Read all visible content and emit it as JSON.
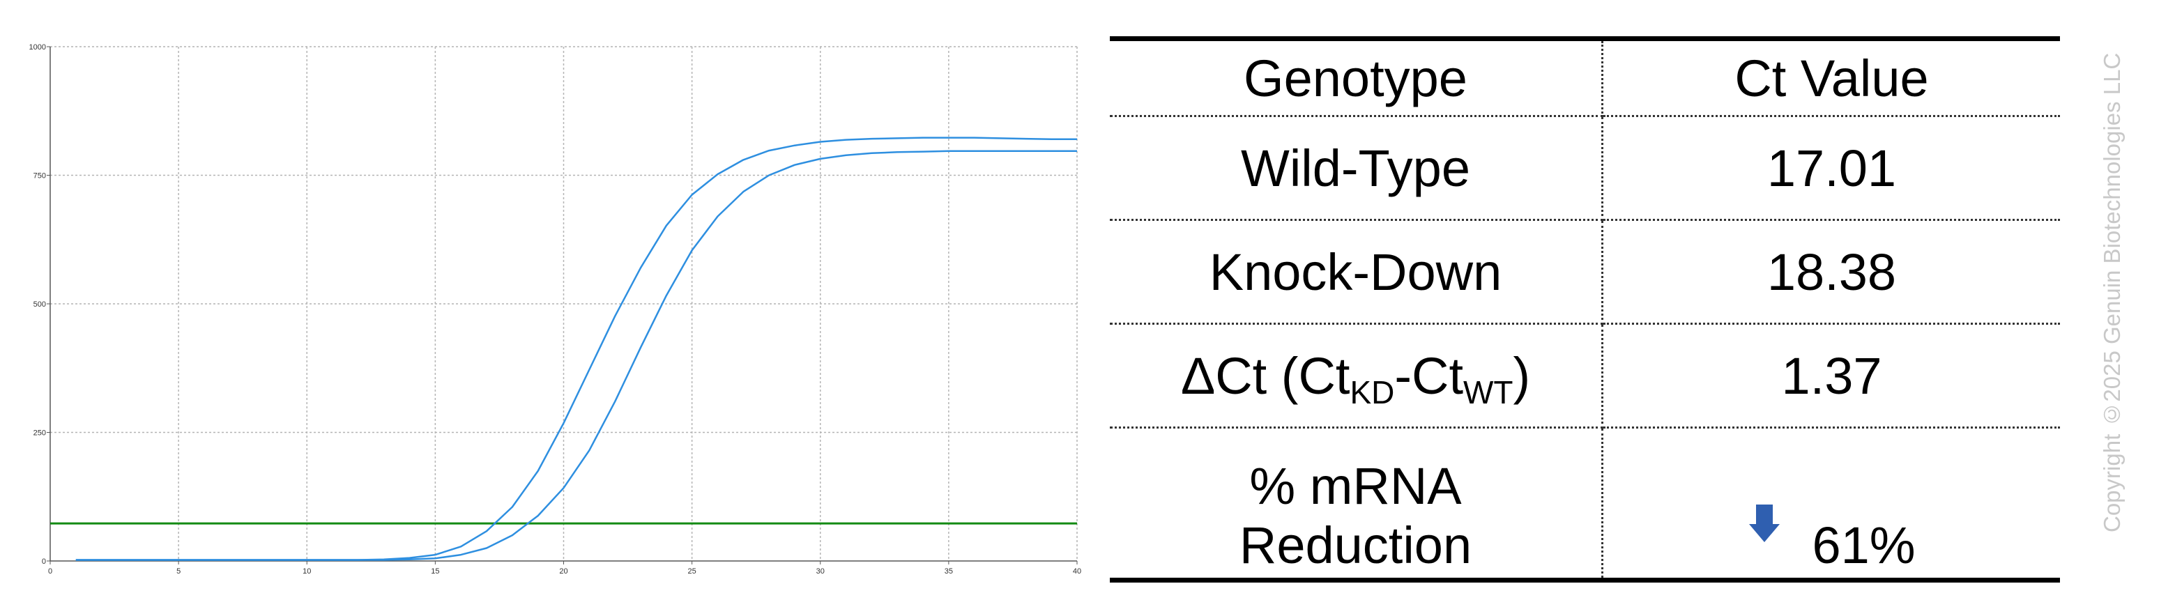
{
  "chart_data": {
    "type": "line",
    "x_ticks": [
      0,
      5,
      10,
      15,
      20,
      25,
      30,
      35,
      40
    ],
    "y_ticks": [
      0,
      250,
      500,
      750,
      1000
    ],
    "xlim": [
      0,
      40
    ],
    "ylim": [
      0,
      1000
    ],
    "grid": true,
    "threshold": 73,
    "series": [
      {
        "x": [
          1,
          5,
          10,
          12,
          13,
          14,
          15,
          16,
          17,
          18,
          19,
          20,
          21,
          22,
          23,
          24,
          25,
          26,
          27,
          28,
          29,
          30,
          31,
          32,
          33,
          34,
          35,
          36,
          37,
          38,
          39,
          40
        ],
        "values": [
          2,
          2,
          2,
          2,
          3,
          6,
          12,
          28,
          58,
          105,
          175,
          268,
          372,
          476,
          570,
          652,
          712,
          752,
          780,
          798,
          808,
          815,
          819,
          821,
          822,
          823,
          823,
          823,
          822,
          821,
          820,
          820
        ]
      },
      {
        "x": [
          1,
          5,
          10,
          12,
          13,
          14,
          15,
          16,
          17,
          18,
          19,
          20,
          21,
          22,
          23,
          24,
          25,
          26,
          27,
          28,
          29,
          30,
          31,
          32,
          33,
          34,
          35,
          36,
          37,
          38,
          39,
          40
        ],
        "values": [
          2,
          2,
          2,
          2,
          2,
          3,
          5,
          12,
          25,
          50,
          88,
          142,
          215,
          310,
          415,
          516,
          604,
          670,
          718,
          750,
          770,
          782,
          789,
          793,
          795,
          796,
          797,
          797,
          797,
          797,
          797,
          797
        ]
      }
    ]
  },
  "table": {
    "header": {
      "genotype": "Genotype",
      "ct": "Ct Value"
    },
    "rows": [
      {
        "genotype": "Wild-Type",
        "ct": "17.01"
      },
      {
        "genotype": "Knock-Down",
        "ct": "18.38"
      }
    ],
    "delta_row": {
      "prefix": "ΔCt (Ct",
      "sub_kd": "KD",
      "minus": "-Ct",
      "sub_wt": "WT",
      "suffix": ")",
      "ct": "1.37"
    },
    "reduction_row": {
      "line1": "% mRNA",
      "line2": "Reduction",
      "ct": "61%",
      "icon": "arrow-down-icon"
    }
  },
  "copyright": "Copyright ©2025 Genuin Biotechnologies LLC",
  "colors": {
    "curve": "#2e8fe0",
    "threshold": "#138a13",
    "grid": "#b4b4b4",
    "arrow": "#2f5fb0"
  }
}
